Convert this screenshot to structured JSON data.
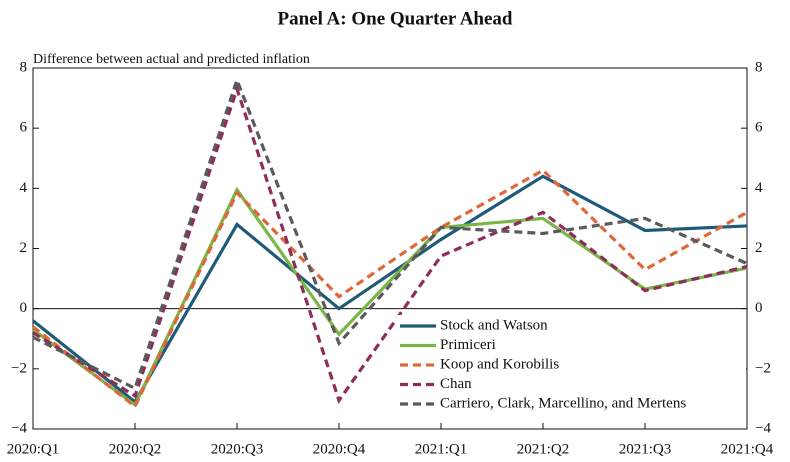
{
  "chart_data": {
    "type": "line",
    "title": "Panel A: One Quarter Ahead",
    "y_label": "Difference between actual and predicted inflation",
    "categories": [
      "2020:Q1",
      "2020:Q2",
      "2020:Q3",
      "2020:Q4",
      "2021:Q1",
      "2021:Q2",
      "2021:Q3",
      "2021:Q4"
    ],
    "series": [
      {
        "name": "Stock and Watson",
        "color": "#1f5b78",
        "dashed": false,
        "values": [
          -0.4,
          -3.1,
          2.8,
          0.0,
          2.3,
          4.4,
          2.6,
          2.75
        ]
      },
      {
        "name": "Primiceri",
        "color": "#7ab648",
        "dashed": false,
        "values": [
          -0.7,
          -3.2,
          3.95,
          -0.85,
          2.7,
          3.0,
          0.65,
          1.35
        ]
      },
      {
        "name": "Koop and Korobilis",
        "color": "#e0673a",
        "dashed": true,
        "values": [
          -0.6,
          -3.25,
          3.85,
          0.4,
          2.7,
          4.6,
          1.3,
          3.2
        ]
      },
      {
        "name": "Chan",
        "color": "#8e2c5c",
        "dashed": true,
        "values": [
          -0.8,
          -2.9,
          7.3,
          -3.05,
          1.75,
          3.2,
          0.6,
          1.4
        ]
      },
      {
        "name": "Carriero, Clark, Marcellino, and Mertens",
        "color": "#5a5a5a",
        "dashed": true,
        "values": [
          -0.95,
          -2.65,
          7.6,
          -1.15,
          2.7,
          2.5,
          3.0,
          1.5
        ]
      }
    ],
    "ylim": [
      -4,
      8
    ],
    "yticks": [
      {
        "value": -4,
        "label": "−4"
      },
      {
        "value": -2,
        "label": "−2"
      },
      0,
      2,
      4,
      6,
      8
    ],
    "y2lim": [
      -4,
      8
    ],
    "y2ticks": [
      {
        "value": -4,
        "label": "−4"
      },
      {
        "value": -2,
        "label": "−2"
      },
      0,
      2,
      4,
      6,
      8
    ],
    "legend": "lower-right"
  }
}
